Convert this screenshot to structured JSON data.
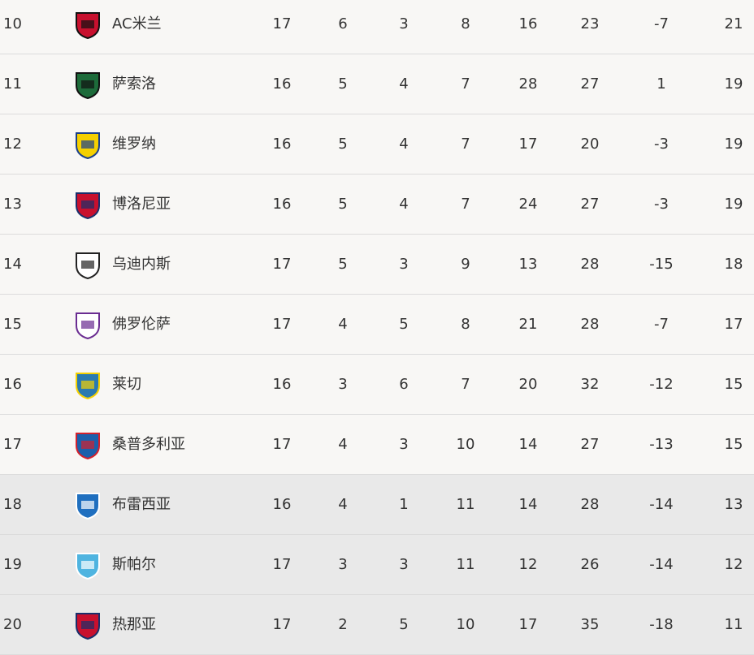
{
  "rows": [
    {
      "rank": "10",
      "team": "AC米兰",
      "logo": "ac-milan-logo",
      "colors": [
        "#c8102e",
        "#111111"
      ],
      "p": "17",
      "w": "6",
      "d": "3",
      "l": "8",
      "gf": "16",
      "ga": "23",
      "gd": "-7",
      "pts": "21"
    },
    {
      "rank": "11",
      "team": "萨索洛",
      "logo": "sassuolo-logo",
      "colors": [
        "#1d6b3a",
        "#111111"
      ],
      "p": "16",
      "w": "5",
      "d": "4",
      "l": "7",
      "gf": "28",
      "ga": "27",
      "gd": "1",
      "pts": "19"
    },
    {
      "rank": "12",
      "team": "维罗纳",
      "logo": "verona-logo",
      "colors": [
        "#f5d000",
        "#1a3f8b"
      ],
      "p": "16",
      "w": "5",
      "d": "4",
      "l": "7",
      "gf": "17",
      "ga": "20",
      "gd": "-3",
      "pts": "19"
    },
    {
      "rank": "13",
      "team": "博洛尼亚",
      "logo": "bologna-logo",
      "colors": [
        "#c8102e",
        "#1a2f6b"
      ],
      "p": "16",
      "w": "5",
      "d": "4",
      "l": "7",
      "gf": "24",
      "ga": "27",
      "gd": "-3",
      "pts": "19"
    },
    {
      "rank": "14",
      "team": "乌迪内斯",
      "logo": "udinese-logo",
      "colors": [
        "#ffffff",
        "#222222"
      ],
      "p": "17",
      "w": "5",
      "d": "3",
      "l": "9",
      "gf": "13",
      "ga": "28",
      "gd": "-15",
      "pts": "18"
    },
    {
      "rank": "15",
      "team": "佛罗伦萨",
      "logo": "fiorentina-logo",
      "colors": [
        "#ffffff",
        "#6a2c91"
      ],
      "p": "17",
      "w": "4",
      "d": "5",
      "l": "8",
      "gf": "21",
      "ga": "28",
      "gd": "-7",
      "pts": "17"
    },
    {
      "rank": "16",
      "team": "莱切",
      "logo": "lecce-logo",
      "colors": [
        "#2a7ab0",
        "#f5d000"
      ],
      "p": "16",
      "w": "3",
      "d": "6",
      "l": "7",
      "gf": "20",
      "ga": "32",
      "gd": "-12",
      "pts": "15"
    },
    {
      "rank": "17",
      "team": "桑普多利亚",
      "logo": "sampdoria-logo",
      "colors": [
        "#1b5fab",
        "#d3212d"
      ],
      "p": "17",
      "w": "4",
      "d": "3",
      "l": "10",
      "gf": "14",
      "ga": "27",
      "gd": "-13",
      "pts": "15"
    },
    {
      "rank": "18",
      "team": "布雷西亚",
      "logo": "brescia-logo",
      "colors": [
        "#1f6fbf",
        "#ffffff"
      ],
      "p": "16",
      "w": "4",
      "d": "1",
      "l": "11",
      "gf": "14",
      "ga": "28",
      "gd": "-14",
      "pts": "13",
      "relegation": true
    },
    {
      "rank": "19",
      "team": "斯帕尔",
      "logo": "spal-logo",
      "colors": [
        "#4fb4e0",
        "#ffffff"
      ],
      "p": "17",
      "w": "3",
      "d": "3",
      "l": "11",
      "gf": "12",
      "ga": "26",
      "gd": "-14",
      "pts": "12",
      "relegation": true
    },
    {
      "rank": "20",
      "team": "热那亚",
      "logo": "genoa-logo",
      "colors": [
        "#c8102e",
        "#1a2f6b"
      ],
      "p": "17",
      "w": "2",
      "d": "5",
      "l": "10",
      "gf": "17",
      "ga": "35",
      "gd": "-18",
      "pts": "11",
      "relegation": true
    }
  ]
}
